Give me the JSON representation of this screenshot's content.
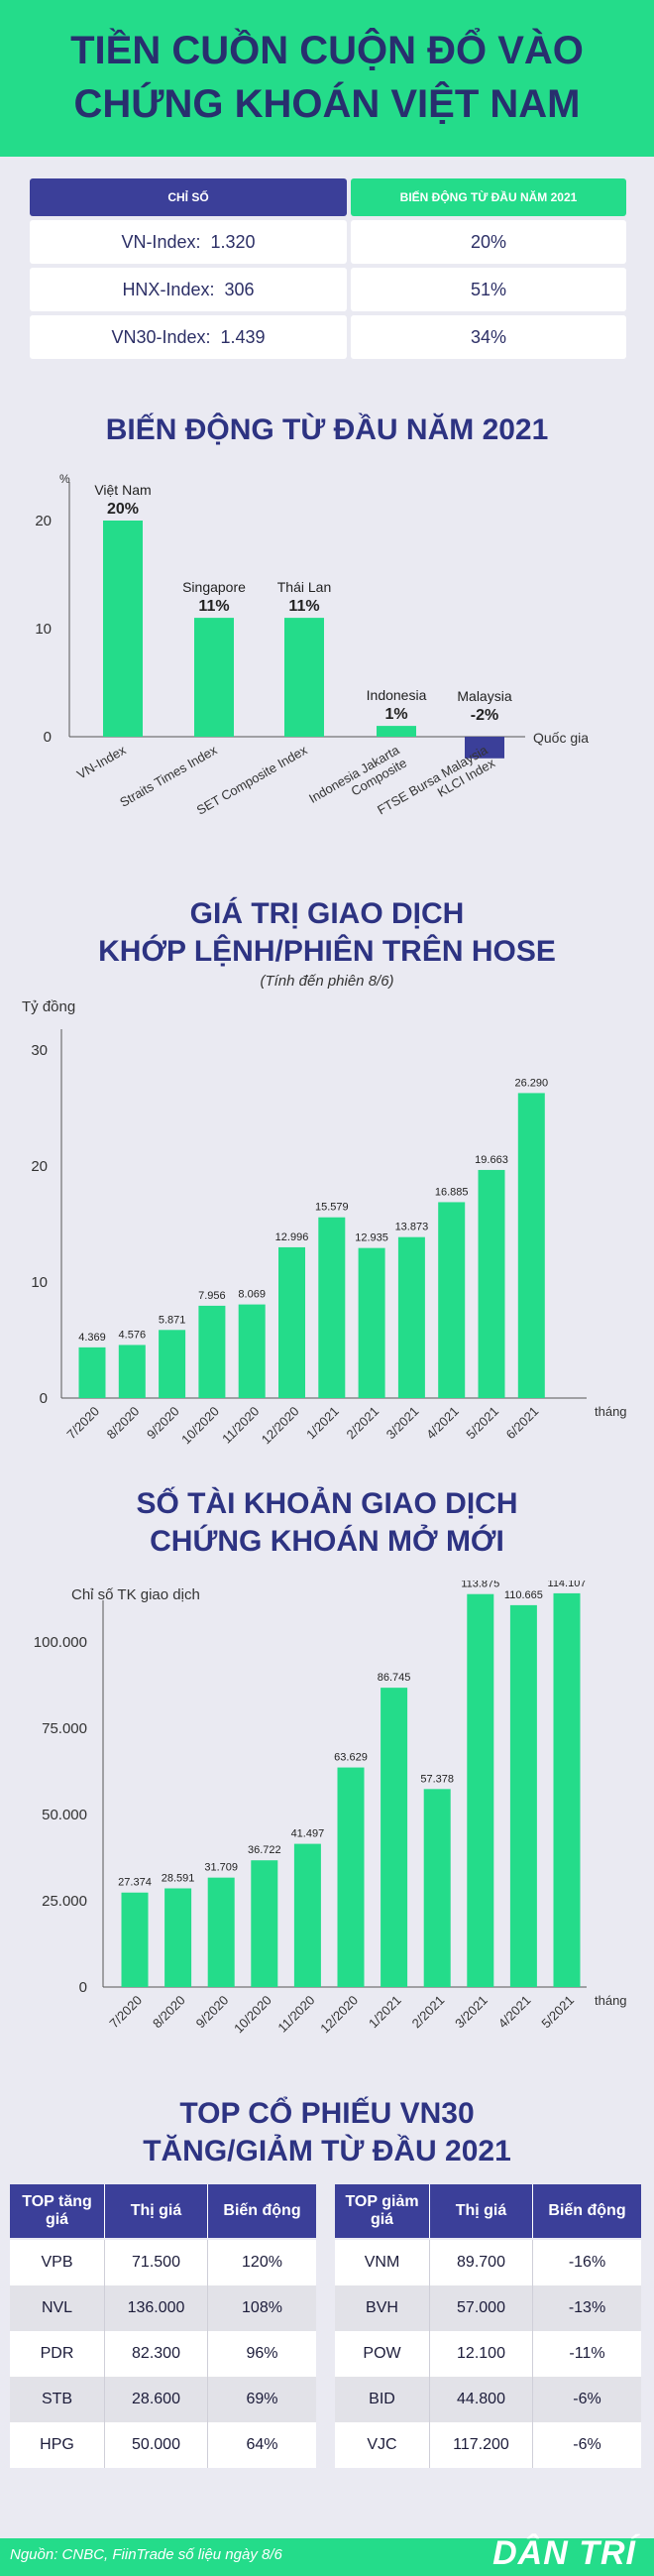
{
  "header": {
    "title_line1": "TIỀN CUỒN CUỘN ĐỔ VÀO",
    "title_line2": "CHỨNG KHOÁN VIỆT NAM"
  },
  "index_table": {
    "col1": "CHỈ SỐ",
    "col2": "BIẾN ĐỘNG TỪ ĐẦU NĂM 2021",
    "rows": [
      {
        "name": "VN-Index:",
        "value": "1.320",
        "change": "20%"
      },
      {
        "name": "HNX-Index:",
        "value": "306",
        "change": "51%"
      },
      {
        "name": "VN30-Index:",
        "value": "1.439",
        "change": "34%"
      }
    ]
  },
  "colors": {
    "green": "#24dc8a",
    "navy": "#3b3f99",
    "text": "#2d3382",
    "row_alt": "#e2e2e8"
  },
  "sections": {
    "bien_dong": "BIẾN ĐỘNG TỪ ĐẦU NĂM 2021",
    "gia_tri_line1": "GIÁ TRỊ GIAO DỊCH",
    "gia_tri_line2": "KHỚP LỆNH/PHIÊN TRÊN HOSE",
    "gia_tri_note": "(Tính đến phiên 8/6)",
    "tai_khoan_line1": "SỐ TÀI KHOẢN GIAO DỊCH",
    "tai_khoan_line2": "CHỨNG KHOÁN MỞ MỚI",
    "top_line1": "TOP CỔ PHIẾU VN30",
    "top_line2": "TĂNG/GIẢM TỪ ĐẦU 2021"
  },
  "chart_data": [
    {
      "type": "bar",
      "title": "BIẾN ĐỘNG TỪ ĐẦU NĂM 2021",
      "ylabel": "%",
      "xlabel": "Quốc gia",
      "ylim": [
        -2,
        22
      ],
      "yticks": [
        "0",
        "10",
        "20"
      ],
      "countries": [
        "Việt Nam",
        "Singapore",
        "Thái Lan",
        "Indonesia",
        "Malaysia"
      ],
      "labels": [
        "20%",
        "11%",
        "11%",
        "1%",
        "-2%"
      ],
      "categories": [
        "VN-Index",
        "Straits Times Index",
        "SET Composite Index",
        "Indonesia Jakarta Composite",
        "FTSE Bursa Malaysia KLCI Index"
      ],
      "values": [
        20,
        11,
        11,
        1,
        -2
      ]
    },
    {
      "type": "bar",
      "title": "GIÁ TRỊ GIAO DỊCH KHỚP LỆNH/PHIÊN TRÊN HOSE",
      "ylabel": "Tỷ đồng",
      "xlabel": "tháng",
      "ylim": [
        0,
        30
      ],
      "yticks": [
        "0",
        "10",
        "20",
        "30"
      ],
      "categories": [
        "7/2020",
        "8/2020",
        "9/2020",
        "10/2020",
        "11/2020",
        "12/2020",
        "1/2021",
        "2/2021",
        "3/2021",
        "4/2021",
        "5/2021",
        "6/2021"
      ],
      "labels": [
        "4.369",
        "4.576",
        "5.871",
        "7.956",
        "8.069",
        "12.996",
        "15.579",
        "12.935",
        "13.873",
        "16.885",
        "19.663",
        "26.290"
      ],
      "values": [
        4.369,
        4.576,
        5.871,
        7.956,
        8.069,
        12.996,
        15.579,
        12.935,
        13.873,
        16.885,
        19.663,
        26.29
      ]
    },
    {
      "type": "bar",
      "title": "SỐ TÀI KHOẢN GIAO DỊCH CHỨNG KHOÁN MỞ MỚI",
      "ylabel": "Chỉ số TK giao dịch",
      "xlabel": "tháng",
      "ylim": [
        0,
        120000
      ],
      "yticks": [
        "0",
        "25.000",
        "50.000",
        "75.000",
        "100.000"
      ],
      "categories": [
        "7/2020",
        "8/2020",
        "9/2020",
        "10/2020",
        "11/2020",
        "12/2020",
        "1/2021",
        "2/2021",
        "3/2021",
        "4/2021",
        "5/2021"
      ],
      "labels": [
        "27.374",
        "28.591",
        "31.709",
        "36.722",
        "41.497",
        "63.629",
        "86.745",
        "57.378",
        "113.875",
        "110.665",
        "114.107"
      ],
      "values": [
        27374,
        28591,
        31709,
        36722,
        41497,
        63629,
        86745,
        57378,
        113875,
        110665,
        114107
      ]
    }
  ],
  "top_gain": {
    "headers": [
      "TOP tăng giá",
      "Thị giá",
      "Biến động"
    ],
    "rows": [
      [
        "VPB",
        "71.500",
        "120%"
      ],
      [
        "NVL",
        "136.000",
        "108%"
      ],
      [
        "PDR",
        "82.300",
        "96%"
      ],
      [
        "STB",
        "28.600",
        "69%"
      ],
      [
        "HPG",
        "50.000",
        "64%"
      ]
    ]
  },
  "top_loss": {
    "headers": [
      "TOP giảm giá",
      "Thị giá",
      "Biến động"
    ],
    "rows": [
      [
        "VNM",
        "89.700",
        "-16%"
      ],
      [
        "BVH",
        "57.000",
        "-13%"
      ],
      [
        "POW",
        "12.100",
        "-11%"
      ],
      [
        "BID",
        "44.800",
        "-6%"
      ],
      [
        "VJC",
        "117.200",
        "-6%"
      ]
    ]
  },
  "footer": {
    "source": "Nguồn: CNBC, FiinTrade số liệu ngày 8/6",
    "logo": "DÂN TRÍ"
  }
}
